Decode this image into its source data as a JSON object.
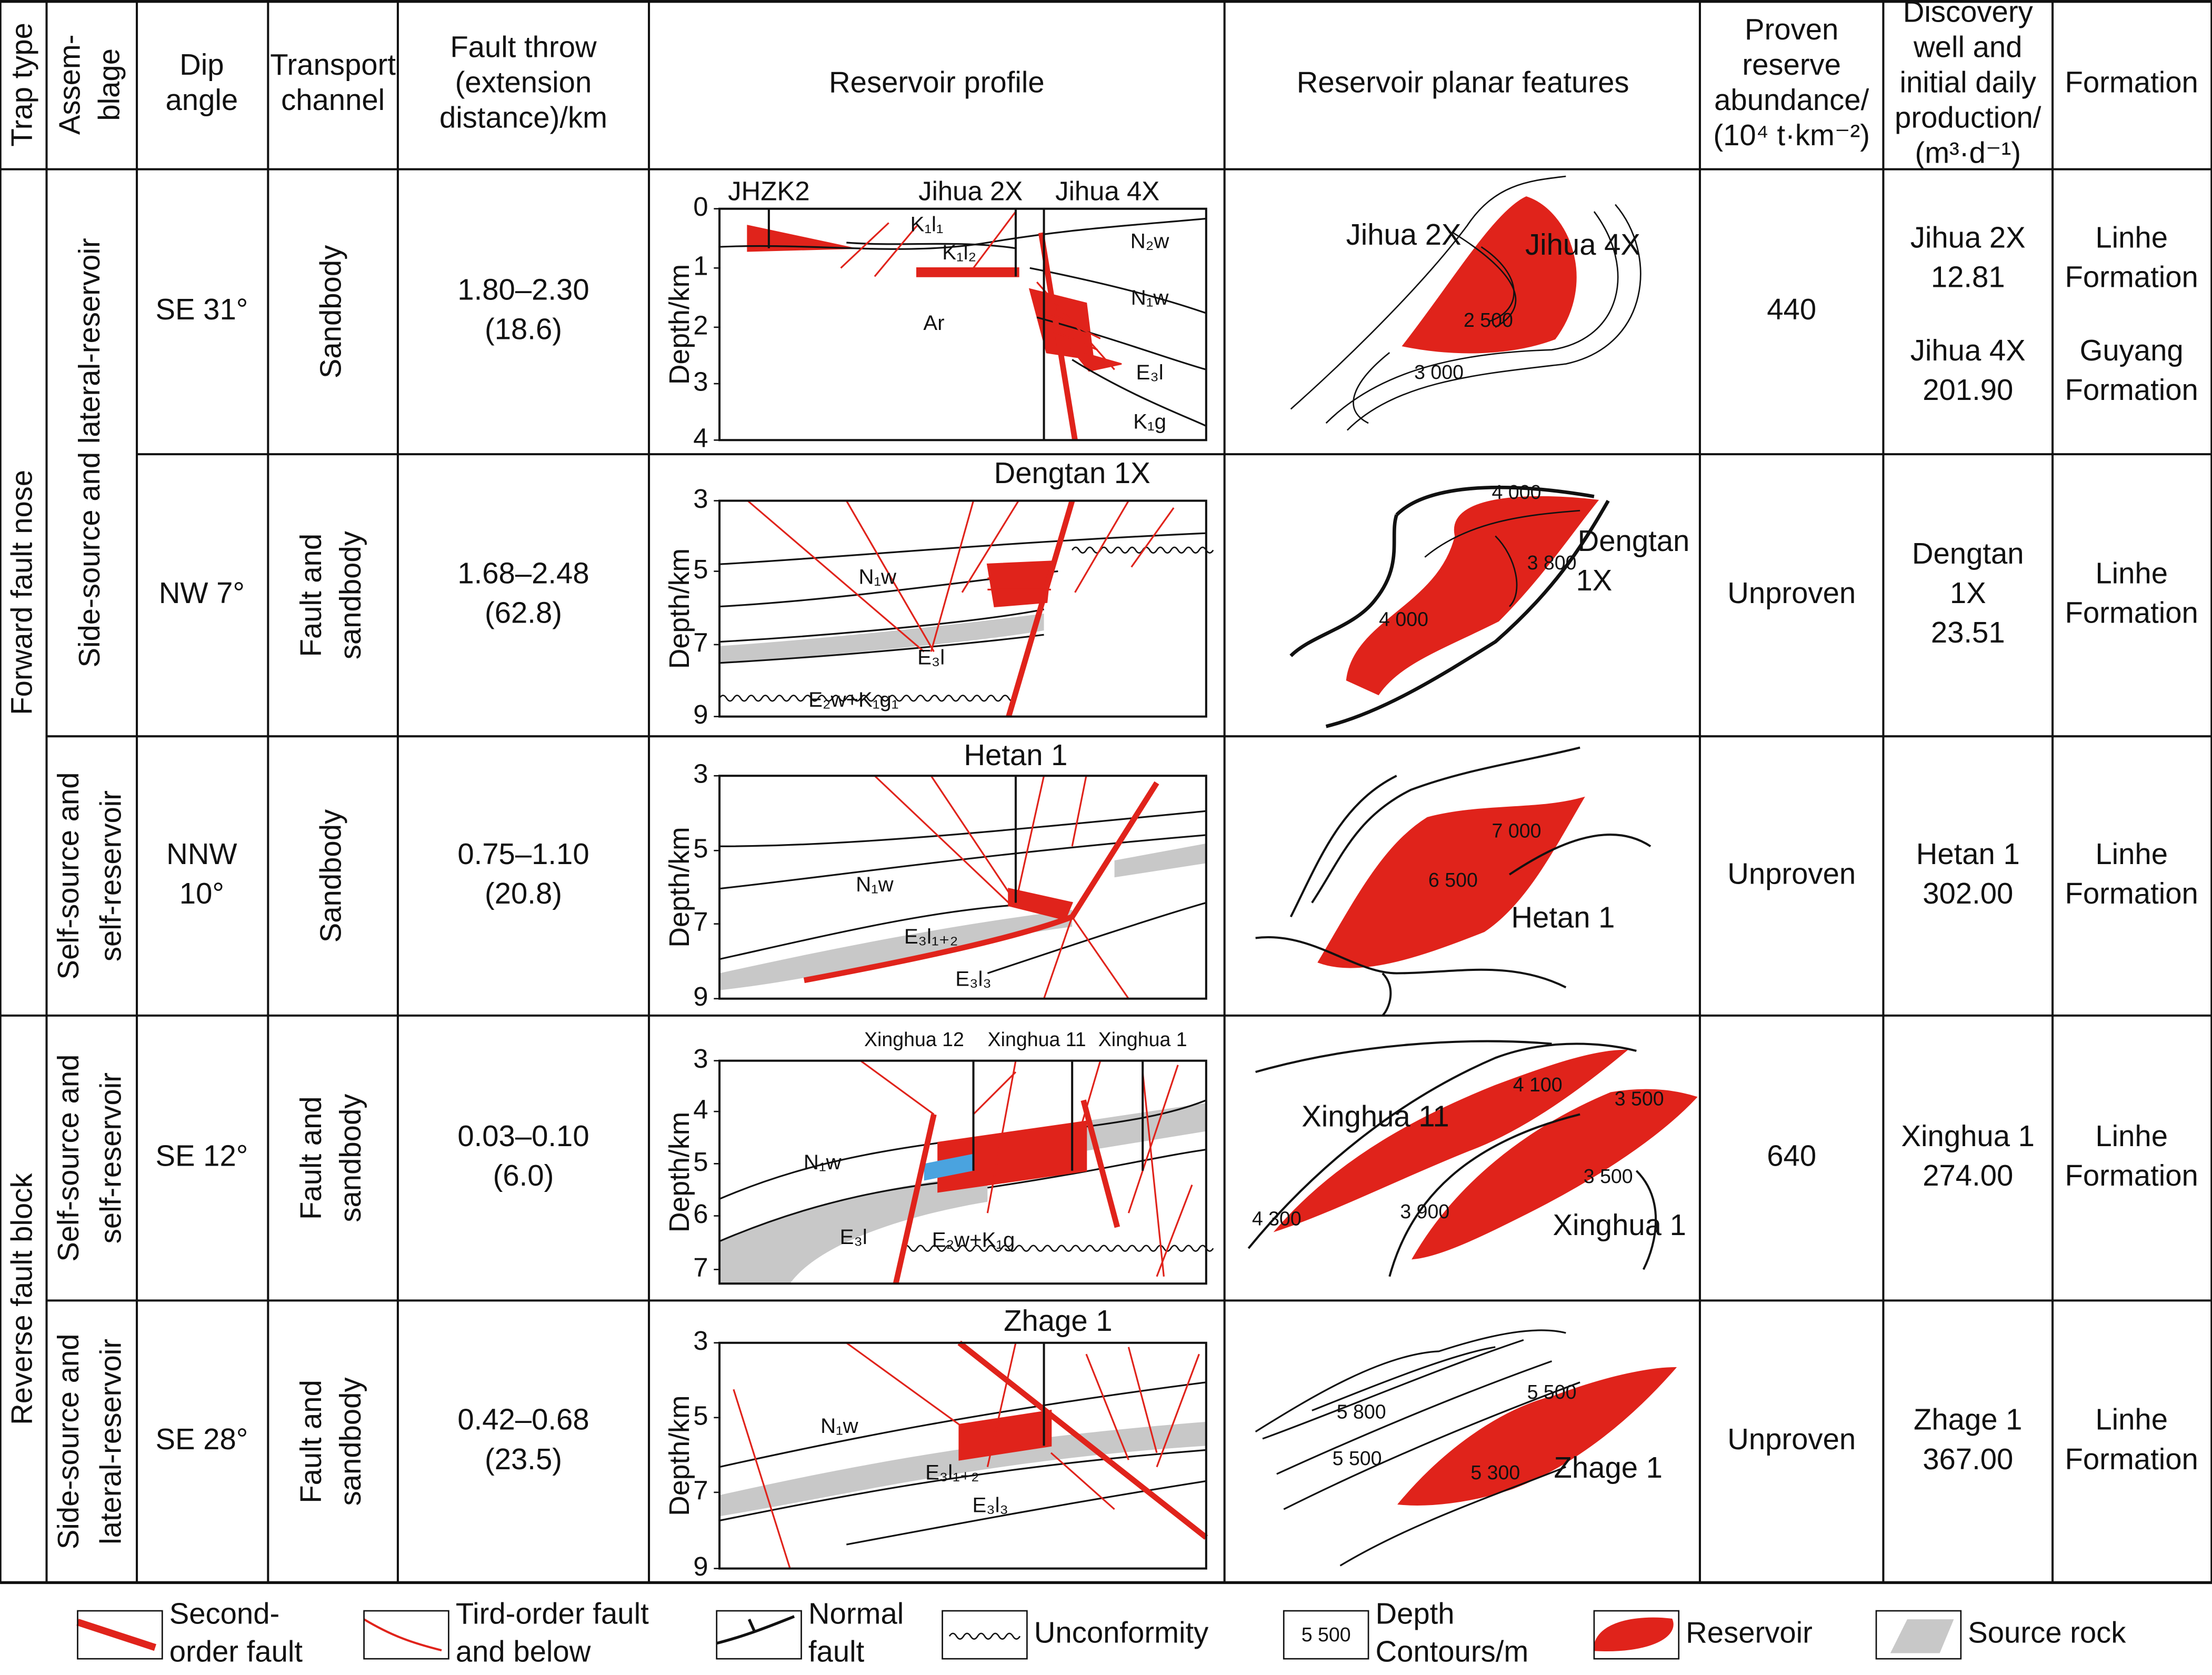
{
  "header": [
    [
      "Trap type"
    ],
    [
      "Assem-",
      "blage"
    ],
    [
      "Dip",
      "angle"
    ],
    [
      "Transport",
      "channel"
    ],
    [
      "Fault throw",
      "(extension",
      "distance)/km"
    ],
    [
      "Reservoir profile"
    ],
    [
      "Reservoir planar features"
    ],
    [
      "Proven",
      "reserve",
      "abundance/",
      "(10⁴ t·km⁻²)"
    ],
    [
      "Discovery",
      "well and",
      "initial daily",
      "production/",
      "(m³·d⁻¹)"
    ],
    [
      "Formation"
    ]
  ],
  "trap_types": [
    "Forward fault nose",
    "Reverse fault block"
  ],
  "assemblages": [
    [
      "Side-source and lateral-reservoir"
    ],
    [
      "Self-source and",
      "self-reservoir"
    ],
    [
      "Self-source and",
      "self-reservoir"
    ],
    [
      "Side-source and",
      "lateral-reservoir"
    ]
  ],
  "rows": [
    {
      "dip": [
        "SE 31°"
      ],
      "channel": [
        "Sandbody"
      ],
      "throw": [
        "1.80–2.30",
        "(18.6)"
      ],
      "profile": {
        "wells": [
          "JHZK2",
          "Jihua 2X",
          "Jihua 4X"
        ],
        "axis": "Depth/km",
        "ticks": [
          0,
          1,
          2,
          3,
          4
        ],
        "units": [
          "K₁l₁",
          "K₁l₂",
          "N₂w",
          "N₁w",
          "Ar",
          "E₃l",
          "K₁g"
        ]
      },
      "planar": {
        "wells": [
          "Jihua 2X",
          "Jihua 4X"
        ],
        "contours": [
          "2 500",
          "3 000"
        ]
      },
      "reserve": "440",
      "discovery": [
        "Jihua 2X",
        "12.81",
        "Jihua 4X",
        "201.90"
      ],
      "formation": [
        "Linhe",
        "Formation",
        "Guyang",
        "Formation"
      ]
    },
    {
      "dip": [
        "NW 7°"
      ],
      "channel": [
        "Fault and",
        "sandbody"
      ],
      "throw": [
        "1.68–2.48",
        "(62.8)"
      ],
      "profile": {
        "wells": [
          "Dengtan 1X"
        ],
        "axis": "Depth/km",
        "ticks": [
          3,
          5,
          7,
          9
        ],
        "units": [
          "N₁w",
          "E₃l",
          "E₂w+K₁g₁"
        ]
      },
      "planar": {
        "wells": [
          "Dengtan",
          "1X"
        ],
        "contours": [
          "4 000",
          "3 800",
          "4 000"
        ]
      },
      "reserve": "Unproven",
      "discovery": [
        "Dengtan",
        "1X",
        "23.51"
      ],
      "formation": [
        "Linhe",
        "Formation"
      ]
    },
    {
      "dip": [
        "NNW",
        "10°"
      ],
      "channel": [
        "Sandbody"
      ],
      "throw": [
        "0.75–1.10",
        "(20.8)"
      ],
      "profile": {
        "wells": [
          "Hetan 1"
        ],
        "axis": "Depth/km",
        "ticks": [
          3,
          5,
          7,
          9
        ],
        "units": [
          "N₁w",
          "E₃l₁₊₂",
          "E₃l₃"
        ]
      },
      "planar": {
        "wells": [
          "Hetan 1"
        ],
        "contours": [
          "7 000",
          "6 500"
        ]
      },
      "reserve": "Unproven",
      "discovery": [
        "Hetan 1",
        "302.00"
      ],
      "formation": [
        "Linhe",
        "Formation"
      ]
    },
    {
      "dip": [
        "SE 12°"
      ],
      "channel": [
        "Fault and",
        "sandbody"
      ],
      "throw": [
        "0.03–0.10",
        "(6.0)"
      ],
      "profile": {
        "wells": [
          "Xinghua 12",
          "Xinghua 11",
          "Xinghua 1"
        ],
        "axis": "Depth/km",
        "ticks": [
          3,
          4,
          5,
          6,
          7
        ],
        "units": [
          "N₁w",
          "E₃l",
          "E₂w+K₁g"
        ]
      },
      "planar": {
        "wells": [
          "Xinghua 11",
          "Xinghua 1"
        ],
        "contours": [
          "4 100",
          "3 500",
          "3 500",
          "3 900",
          "4 300"
        ]
      },
      "reserve": "640",
      "discovery": [
        "Xinghua 1",
        "274.00"
      ],
      "formation": [
        "Linhe",
        "Formation"
      ]
    },
    {
      "dip": [
        "SE 28°"
      ],
      "channel": [
        "Fault and",
        "sandbody"
      ],
      "throw": [
        "0.42–0.68",
        "(23.5)"
      ],
      "profile": {
        "wells": [
          "Zhage 1"
        ],
        "axis": "Depth/km",
        "ticks": [
          3,
          5,
          7,
          9
        ],
        "units": [
          "N₁w",
          "E₃l₁₊₂",
          "E₃l₃"
        ]
      },
      "planar": {
        "wells": [
          "Zhage 1"
        ],
        "contours": [
          "5 500",
          "5 800",
          "5 500",
          "5 300"
        ]
      },
      "reserve": "Unproven",
      "discovery": [
        "Zhage 1",
        "367.00"
      ],
      "formation": [
        "Linhe",
        "Formation"
      ]
    }
  ],
  "legend": [
    {
      "label": [
        "Second-",
        "order fault"
      ]
    },
    {
      "label": [
        "Tird-order fault",
        "and below"
      ]
    },
    {
      "label": [
        "Normal",
        "fault"
      ]
    },
    {
      "label": [
        "Unconformity"
      ]
    },
    {
      "label": [
        "Depth",
        "Contours/m"
      ],
      "icon": "5 500"
    },
    {
      "label": [
        "Reservoir"
      ]
    },
    {
      "label": [
        "Source rock"
      ]
    }
  ]
}
